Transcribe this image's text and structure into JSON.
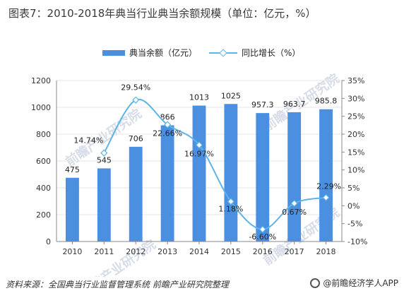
{
  "title": "图表7：2010-2018年典当行业典当余额规模（单位：亿元，%）",
  "legend": {
    "bar_label": "典当余额（亿元）",
    "line_label": "同比增长（%）"
  },
  "footer": {
    "source": "资料来源：全国典当行业监督管理系统  前瞻产业研究院整理",
    "brand": "@前瞻经济学人APP"
  },
  "watermark": "前瞻产业研究院",
  "colors": {
    "bar": "#4a8fe0",
    "line": "#5db4e8",
    "grid": "#e6e6e6",
    "axis": "#888888"
  },
  "chart_data": {
    "type": "bar",
    "title": "",
    "categories": [
      "2010",
      "2011",
      "2012",
      "2013",
      "2014",
      "2015",
      "2016",
      "2017",
      "2018"
    ],
    "series": [
      {
        "name": "典当余额（亿元）",
        "type": "bar",
        "axis": "left",
        "values": [
          475,
          545,
          706,
          866,
          1013,
          1025,
          957.3,
          963.7,
          985.8
        ],
        "labels": [
          "475",
          "545",
          "706",
          "866",
          "1013",
          "1025",
          "957.3",
          "963.7",
          "985.8"
        ]
      },
      {
        "name": "同比增长（%）",
        "type": "line",
        "axis": "right",
        "x": [
          "2011",
          "2012",
          "2013",
          "2014",
          "2015",
          "2016",
          "2017",
          "2018"
        ],
        "values": [
          14.74,
          29.54,
          22.66,
          16.97,
          1.18,
          -6.6,
          0.67,
          2.29
        ],
        "labels": [
          "14.74%",
          "29.54%",
          "22.66%",
          "16.97%",
          "1.18%",
          "-6.60%",
          "0.67%",
          "2.29%"
        ]
      }
    ],
    "y_left": {
      "lim": [
        0,
        1200
      ],
      "ticks": [
        0,
        200,
        400,
        600,
        800,
        1000,
        1200
      ],
      "tick_labels": [
        "0",
        "200",
        "400",
        "600",
        "800",
        "1000",
        "1200"
      ]
    },
    "y_right": {
      "lim": [
        -10,
        35
      ],
      "ticks": [
        -10,
        -5,
        0,
        5,
        10,
        15,
        20,
        25,
        30,
        35
      ],
      "tick_labels": [
        "-10%",
        "-5%",
        "0%",
        "5%",
        "10%",
        "15%",
        "20%",
        "25%",
        "30%",
        "35%"
      ]
    },
    "grid": true,
    "legend_position": "top-center"
  }
}
